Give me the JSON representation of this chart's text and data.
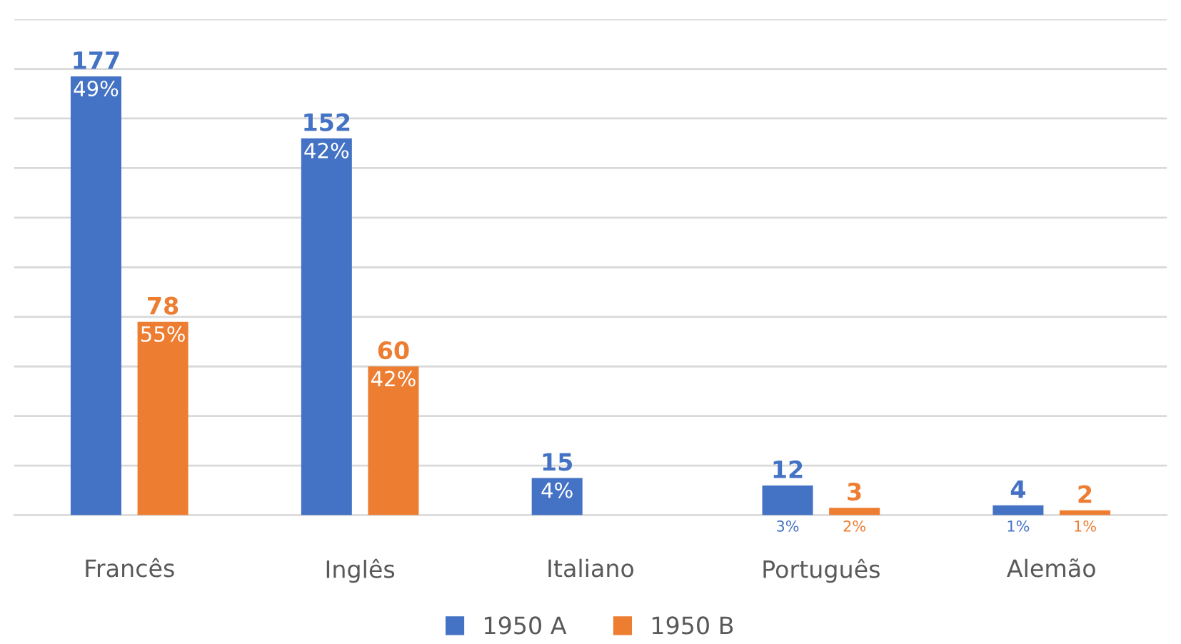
{
  "chart_data": {
    "type": "bar",
    "categories": [
      "Francês",
      "Inglês",
      "Italiano",
      "Português",
      "Alemão"
    ],
    "series": [
      {
        "name": "1950 A",
        "color": "#4472c4",
        "values": [
          177,
          152,
          15,
          12,
          4
        ],
        "value_labels": [
          "177\n49%",
          "152\n42%",
          "15\n4%",
          "12\n3%",
          "4\n1%"
        ]
      },
      {
        "name": "1950 B",
        "color": "#ed7d31",
        "values": [
          78,
          60,
          null,
          3,
          2
        ],
        "value_labels": [
          "78\n55%",
          "60\n42%",
          null,
          "3\n2%",
          "2\n1%"
        ]
      }
    ],
    "ylim": [
      0,
      200
    ],
    "yticks": [
      {
        "value": 0,
        "label": null
      },
      {
        "value": 20,
        "label": null
      },
      {
        "value": 40,
        "label": null
      },
      {
        "value": 60,
        "label": null
      },
      {
        "value": 80,
        "label": null
      },
      {
        "value": 100,
        "label": null
      },
      {
        "value": 120,
        "label": null
      },
      {
        "value": 140,
        "label": null
      },
      {
        "value": 160,
        "label": null
      },
      {
        "value": 180,
        "label": null
      },
      {
        "value": 200,
        "label": null
      }
    ],
    "grid": "y",
    "legend": "bottom",
    "tick_labels": "x"
  }
}
